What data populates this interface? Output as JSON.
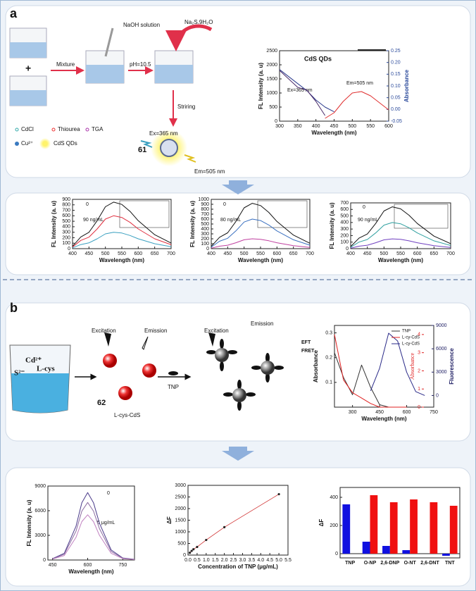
{
  "panel_labels": [
    "a",
    "b"
  ],
  "scheme_a": {
    "labels": [
      "NaOH solution",
      "Na₂S.9H₂O",
      "Mixture",
      "pH=10.5",
      "Striring",
      "Ex=365 nm",
      "Em=505 nm",
      "61"
    ],
    "legend": [
      "CdCl",
      "Thiourea",
      "TGA",
      "Cu²⁺",
      "CdS QDs"
    ]
  },
  "scheme_b": {
    "labels": [
      "Excitation",
      "Emission",
      "Excitation",
      "Emission",
      "TNP",
      "62",
      "L-cys-CdS",
      "Cd²⁺",
      "S²⁻",
      "L-cys"
    ]
  },
  "charts": [
    {
      "type": "line",
      "title": "CdS QDs",
      "annotations": [
        "Ex=365 nm",
        "Em=505 nm"
      ],
      "xlabel": "Wavelength (nm)",
      "ylabel": "FL Intensity (a. u)",
      "y2label": "Absorbance",
      "y2color": "#2b4a9b",
      "x": [
        300,
        325,
        350,
        375,
        400,
        425,
        450,
        475,
        500,
        525,
        550,
        575,
        600
      ],
      "xlim": [
        300,
        600
      ],
      "xticks": [
        300,
        350,
        400,
        450,
        500,
        550,
        600
      ],
      "ylim": [
        0,
        2500
      ],
      "yticks": [
        0,
        500,
        1000,
        1500,
        2000,
        2500
      ],
      "y2lim": [
        -0.05,
        0.25
      ],
      "y2ticks": [
        -0.05,
        {
          "value": 0,
          "label": "0.00"
        },
        0.05,
        {
          "value": 0.1,
          "label": "0.10"
        },
        0.15,
        {
          "value": 0.2,
          "label": "0.20"
        },
        0.25
      ],
      "series": [
        {
          "color": "#2b3a8c",
          "axis": "y2",
          "values": [
            0.17,
            0.14,
            0.11,
            0.08,
            0.04,
            0.01,
            -0.01,
            null,
            null,
            null,
            null,
            null,
            null
          ]
        },
        {
          "color": "#4a2a6a",
          "values": [
            1800,
            1500,
            1200,
            1100,
            700,
            200,
            null,
            null,
            null,
            null,
            null,
            null,
            null
          ]
        },
        {
          "color": "#e03030",
          "values": [
            null,
            null,
            null,
            null,
            null,
            100,
            300,
            700,
            1000,
            1050,
            900,
            650,
            400
          ]
        }
      ]
    },
    {
      "type": "line",
      "annotations": [
        "0",
        "90 ng/mL"
      ],
      "xlabel": "Wavelength (nm)",
      "ylabel": "FL Intensity (a. u)",
      "x": [
        400,
        425,
        450,
        475,
        500,
        525,
        550,
        575,
        600,
        650,
        700
      ],
      "xlim": [
        400,
        700
      ],
      "xticks": [
        400,
        450,
        500,
        550,
        600,
        650,
        700
      ],
      "ylim": [
        0,
        900
      ],
      "yticks": [
        0,
        100,
        200,
        300,
        400,
        500,
        600,
        700,
        800,
        900
      ],
      "series": [
        {
          "color": "#111111",
          "values": [
            43,
            213,
            298,
            510,
            765,
            850,
            808,
            680,
            510,
            255,
            102
          ]
        },
        {
          "color": "#e03040",
          "values": [
            30,
            150,
            210,
            360,
            540,
            600,
            570,
            480,
            360,
            180,
            72
          ]
        },
        {
          "color": "#3aa0c0",
          "values": [
            15,
            75,
            105,
            180,
            270,
            300,
            285,
            240,
            180,
            90,
            36
          ]
        }
      ]
    },
    {
      "type": "line",
      "annotations": [
        "0",
        "80 ng/mL"
      ],
      "xlabel": "Wavelength (nm)",
      "ylabel": "FL Intensity (a. u)",
      "x": [
        400,
        425,
        450,
        475,
        500,
        525,
        550,
        575,
        600,
        650,
        700
      ],
      "xlim": [
        400,
        700
      ],
      "xticks": [
        400,
        450,
        500,
        550,
        600,
        650,
        700
      ],
      "ylim": [
        0,
        1000
      ],
      "yticks": [
        0,
        100,
        200,
        300,
        400,
        500,
        600,
        700,
        800,
        900,
        1000
      ],
      "series": [
        {
          "color": "#111111",
          "values": [
            46,
            230,
            322,
            552,
            828,
            920,
            874,
            736,
            552,
            276,
            110
          ]
        },
        {
          "color": "#3a70c0",
          "values": [
            30,
            150,
            210,
            360,
            540,
            600,
            570,
            480,
            360,
            180,
            72
          ]
        },
        {
          "color": "#c040a0",
          "values": [
            10,
            50,
            70,
            120,
            180,
            200,
            190,
            160,
            120,
            60,
            24
          ]
        }
      ]
    },
    {
      "type": "line",
      "annotations": [
        "0",
        "90 ng/mL"
      ],
      "xlabel": "Wavelength (nm)",
      "ylabel": "FL Intensity (a. u)",
      "x": [
        400,
        425,
        450,
        475,
        500,
        525,
        550,
        575,
        600,
        650,
        700
      ],
      "xlim": [
        400,
        700
      ],
      "xticks": [
        400,
        450,
        500,
        550,
        600,
        650,
        700
      ],
      "ylim": [
        0,
        700
      ],
      "yticks": [
        0,
        100,
        200,
        300,
        400,
        500,
        600,
        700
      ],
      "series": [
        {
          "color": "#111111",
          "values": [
            32,
            160,
            224,
            384,
            576,
            640,
            608,
            512,
            384,
            192,
            77
          ]
        },
        {
          "color": "#30a0a0",
          "values": [
            20,
            100,
            140,
            240,
            360,
            400,
            380,
            320,
            240,
            120,
            48
          ]
        },
        {
          "color": "#7040c0",
          "values": [
            8,
            38,
            53,
            90,
            135,
            150,
            143,
            120,
            90,
            45,
            18
          ]
        }
      ]
    },
    {
      "type": "line",
      "annotations": [
        "EFT",
        "FRET"
      ],
      "xlabel": "Wavelength (nm)",
      "ylabel": "Absorbance",
      "y2label": "Fluorescence",
      "y3label": "Absorbance",
      "y2color": "#222266",
      "y3color": "#e02020",
      "x": [
        200,
        250,
        300,
        350,
        400,
        450,
        500,
        550,
        600,
        650,
        700
      ],
      "xlim": [
        200,
        750
      ],
      "xticks": [
        300,
        450,
        600,
        750
      ],
      "ylim": [
        0,
        0.33
      ],
      "yticks": [
        0.1,
        0.2,
        0.3
      ],
      "y2lim": [
        -1500,
        9000
      ],
      "y2ticks": [
        0,
        3000,
        6000,
        9000
      ],
      "y3lim": [
        0,
        4.5
      ],
      "y3ticks": [
        0,
        1,
        2,
        3,
        4
      ],
      "legend": true,
      "series": [
        {
          "name": "TNP",
          "color": "#333333",
          "values": [
            0.22,
            0.12,
            0.05,
            0.17,
            0.08,
            0.01,
            0,
            0,
            null,
            null,
            null
          ]
        },
        {
          "name": "L-cy-CdS",
          "color": "#e02020",
          "axis": "y3",
          "values": [
            4,
            1.5,
            0.8,
            0.5,
            0.2,
            0,
            0,
            0,
            0,
            null,
            null
          ]
        },
        {
          "name": "L-cy-CdS",
          "color": "#2a2a88",
          "axis": "y2",
          "values": [
            null,
            null,
            null,
            null,
            600,
            3500,
            8000,
            7000,
            3000,
            500,
            0
          ]
        }
      ]
    },
    {
      "type": "line",
      "annotations": [
        "0",
        "5 μg/mL"
      ],
      "xlabel": "Wavelength (nm)",
      "ylabel": "FL Intensity (a. u)",
      "x": [
        450,
        500,
        550,
        575,
        600,
        625,
        650,
        700,
        750,
        800
      ],
      "xlim": [
        430,
        800
      ],
      "xticks": [
        450,
        600,
        750
      ],
      "ylim": [
        0,
        9000
      ],
      "yticks": [
        0,
        3000,
        6000,
        9000
      ],
      "series": [
        {
          "color": "#4a3a8a",
          "values": [
            164,
            820,
            4100,
            6970,
            8200,
            6970,
            4510,
            1230,
            246,
            82
          ]
        },
        {
          "color": "#8a6aa0",
          "values": [
            140,
            700,
            3500,
            5950,
            7000,
            5950,
            3850,
            1050,
            210,
            70
          ]
        },
        {
          "color": "#c080c0",
          "values": [
            110,
            550,
            2750,
            4675,
            5500,
            4675,
            3025,
            825,
            165,
            55
          ]
        }
      ]
    },
    {
      "type": "scatter",
      "xlabel": "Concentration of TNP (μg/mL)",
      "ylabel": "ΔF",
      "color": "#222222",
      "line_color": "#d03030",
      "x": [
        0.1,
        0.2,
        0.3,
        0.5,
        1.0,
        2.0,
        5.0
      ],
      "values": [
        100,
        180,
        250,
        350,
        650,
        1200,
        2620
      ],
      "xlim": [
        0,
        5.5
      ],
      "xticks": [
        {
          "value": 0,
          "label": "0.0"
        },
        0.5,
        {
          "value": 1,
          "label": "1.0"
        },
        1.5,
        {
          "value": 2,
          "label": "2.0"
        },
        2.5,
        {
          "value": 3,
          "label": "3.0"
        },
        3.5,
        {
          "value": 4,
          "label": "4.0"
        },
        4.5,
        {
          "value": 5,
          "label": "5.0"
        },
        5.5
      ],
      "ylim": [
        0,
        3000
      ],
      "yticks": [
        0,
        500,
        1000,
        1500,
        2000,
        2500,
        3000
      ]
    },
    {
      "type": "bar",
      "ylabel": "ΔF",
      "categories": [
        "TNP",
        "O-NP",
        "2,6-DNP",
        "O-NT",
        "2,6-DNT",
        "TNT"
      ],
      "ylim": [
        -30,
        470
      ],
      "yticks": [
        0,
        200,
        400
      ],
      "series": [
        {
          "color": "#1010e0",
          "values": [
            350,
            85,
            55,
            25,
            null,
            -15
          ]
        },
        {
          "color": "#f01010",
          "values": [
            null,
            415,
            365,
            385,
            365,
            340
          ]
        }
      ]
    }
  ]
}
